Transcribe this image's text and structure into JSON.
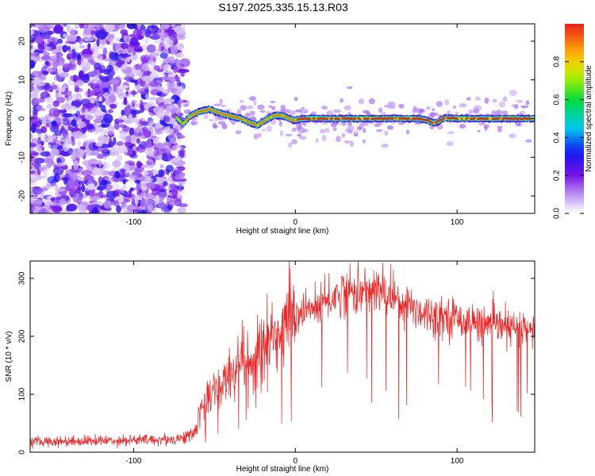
{
  "title": "S197.2025.335.15.13.R03",
  "chart_data": [
    {
      "type": "heatmap",
      "xlabel": "Height of straight line (km)",
      "ylabel": "Frequency (Hz)",
      "xlim": [
        -164,
        148
      ],
      "ylim": [
        -24.5,
        24.5
      ],
      "xticks": [
        -100,
        0,
        100
      ],
      "yticks": [
        -20,
        -10,
        0,
        10,
        20
      ],
      "colorbar": {
        "label": "Normalized spectral amplitude",
        "range": [
          0,
          1
        ],
        "ticks": [
          0.0,
          0.2,
          0.4,
          0.6,
          0.8
        ]
      },
      "noise_region_x": [
        -164,
        -73
      ],
      "ridge": {
        "x": [
          -74,
          -70,
          -66,
          -60,
          -54,
          -48,
          -42,
          -36,
          -30,
          -24,
          -20,
          -14,
          -8,
          -2,
          5,
          15,
          25,
          40,
          55,
          65,
          75,
          80,
          85,
          92,
          100,
          115,
          130,
          148
        ],
        "freq_hz": [
          0.2,
          -1.5,
          0.5,
          1.8,
          2.5,
          1.5,
          0.8,
          0.2,
          -0.8,
          -1.8,
          -0.6,
          0.8,
          0.7,
          -0.5,
          0.0,
          0.0,
          0.0,
          0.0,
          0.0,
          0.0,
          0.0,
          -0.3,
          -1.2,
          0.2,
          0.0,
          0.0,
          0.0,
          0.0
        ]
      }
    },
    {
      "type": "line",
      "series_name": "SNR",
      "color": "#ee2222",
      "xlabel": "Height of straight line (km)",
      "ylabel": "SNR (10 * v/v)",
      "xlim": [
        -164,
        148
      ],
      "ylim": [
        0,
        330
      ],
      "xticks": [
        -100,
        0,
        100
      ],
      "yticks": [
        0,
        100,
        200,
        300
      ],
      "envelope": {
        "x": [
          -164,
          -120,
          -75,
          -63,
          -58,
          -53,
          -45,
          -35,
          -25,
          -15,
          -5,
          5,
          20,
          30,
          40,
          50,
          60,
          70,
          80,
          95,
          110,
          130,
          148
        ],
        "snr": [
          18,
          20,
          22,
          30,
          70,
          100,
          120,
          150,
          160,
          190,
          220,
          240,
          260,
          280,
          275,
          280,
          270,
          255,
          240,
          235,
          225,
          215,
          210
        ]
      }
    }
  ]
}
